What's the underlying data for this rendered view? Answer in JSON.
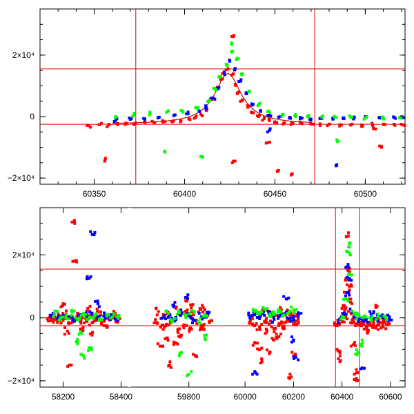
{
  "chart_data": [
    {
      "type": "scatter",
      "title": "",
      "xlabel": "",
      "ylabel": "",
      "xlim": [
        60320,
        60522
      ],
      "ylim": [
        -22000,
        35000
      ],
      "xticks": [
        60350,
        60400,
        60450,
        60500
      ],
      "xtick_labels": [
        "60350",
        "60400",
        "60450",
        "60500"
      ],
      "yticks": [
        20000,
        0,
        -20000
      ],
      "ytick_labels": [
        "2×10⁴",
        "0",
        "−2×10⁴"
      ],
      "hlines": [
        15500,
        -2500
      ],
      "vlines": [
        60373,
        60472
      ],
      "model": {
        "color": "#d00000",
        "peak_x": 60424,
        "peak_y": 14000,
        "base_y": -2500,
        "x_range": [
          60360,
          60470
        ]
      },
      "series": [
        {
          "color": "#ff0000",
          "x": [
            60347,
            60353,
            60358,
            60363,
            60368,
            60373,
            60378,
            60383,
            60388,
            60393,
            60398,
            60403,
            60406,
            60409,
            60412,
            60415,
            60418,
            60420,
            60422,
            60424,
            60426,
            60428,
            60430,
            60432,
            60435,
            60438,
            60441,
            60444,
            60447,
            60450,
            60455,
            60460,
            60465,
            60470,
            60475,
            60480,
            60486,
            60492,
            60498,
            60504,
            60510,
            60516,
            60521,
            60356,
            60427,
            60427,
            60446,
            60452,
            60459,
            60505,
            60509
          ],
          "y": [
            -3000,
            -2600,
            -2800,
            -2600,
            -2300,
            -2100,
            -2000,
            -1900,
            -1800,
            -1600,
            -1400,
            -1000,
            -300,
            700,
            2500,
            5500,
            9500,
            12000,
            14500,
            15500,
            13500,
            10500,
            8000,
            5500,
            3000,
            1200,
            0,
            -700,
            -1300,
            -1700,
            -2000,
            -2200,
            -2300,
            -2400,
            -2500,
            -2500,
            -2600,
            -2600,
            -2700,
            -2700,
            -2600,
            -2600,
            -2700,
            -14000,
            26000,
            -14500,
            -8500,
            -17500,
            -19000,
            -4000,
            -10000
          ]
        },
        {
          "color": "#0000ff",
          "x": [
            60362,
            60370,
            60378,
            60386,
            60394,
            60402,
            60408,
            60412,
            60416,
            60419,
            60422,
            60425,
            60428,
            60431,
            60434,
            60438,
            60442,
            60447,
            60452,
            60458,
            60464,
            60470,
            60476,
            60482,
            60488,
            60494,
            60500,
            60508,
            60516,
            60521,
            60447,
            60484
          ],
          "y": [
            -1200,
            -900,
            -700,
            -200,
            300,
            900,
            1800,
            3000,
            6000,
            9500,
            14000,
            18000,
            15500,
            11500,
            7500,
            4000,
            2000,
            500,
            -200,
            -500,
            -700,
            -800,
            -600,
            -500,
            -400,
            -300,
            -200,
            -300,
            -300,
            -400,
            -4500,
            -16000
          ]
        },
        {
          "color": "#00ff00",
          "x": [
            60362,
            60372,
            60381,
            60390,
            60399,
            60407,
            60413,
            60417,
            60420,
            60423,
            60426,
            60429,
            60432,
            60436,
            60441,
            60447,
            60454,
            60461,
            60468,
            60476,
            60484,
            60492,
            60500,
            60510,
            60519,
            60389,
            60409,
            60426,
            60485
          ],
          "y": [
            0,
            600,
            1000,
            1400,
            1800,
            2600,
            5000,
            9000,
            13000,
            17000,
            21000,
            19000,
            14000,
            8000,
            4000,
            1500,
            600,
            300,
            0,
            -200,
            -300,
            -300,
            -400,
            -400,
            -400,
            -11500,
            -13000,
            23500,
            -8000
          ]
        }
      ]
    },
    {
      "type": "scatter",
      "title": "",
      "xlabel": "",
      "ylabel": "",
      "segments": [
        {
          "xlim": [
            58120,
            58430
          ]
        },
        {
          "xlim": [
            59615,
            59900
          ]
        },
        {
          "xlim": [
            59900,
            60660
          ]
        }
      ],
      "ylim": [
        -22000,
        35000
      ],
      "xtick_labels": [
        "58200",
        "58400",
        "59800",
        "60000",
        "60200",
        "60400",
        "60600"
      ],
      "xticks": [
        58200,
        58400,
        59800,
        60000,
        60200,
        60400,
        60600
      ],
      "yticks": [
        20000,
        0,
        -20000
      ],
      "ytick_labels": [
        "2×10⁴",
        "0",
        "−2×10⁴"
      ],
      "hlines": [
        15500,
        -2500
      ],
      "vlines": [
        60373,
        60472
      ],
      "series": [
        {
          "color": "#ff0000",
          "x": [
            58150,
            58160,
            58170,
            58180,
            58190,
            58200,
            58210,
            58220,
            58230,
            58240,
            58250,
            58260,
            58270,
            58280,
            58290,
            58300,
            58310,
            58320,
            58330,
            58340,
            58350,
            58360,
            58370,
            58380,
            58390,
            58200,
            58215,
            58240,
            58260,
            58285,
            58300,
            58320,
            58350,
            58380,
            58240,
            58225,
            59700,
            59705,
            59712,
            59720,
            59728,
            59735,
            59745,
            59755,
            59765,
            59775,
            59785,
            59795,
            59805,
            59815,
            59825,
            59835,
            59845,
            59855,
            59865,
            59710,
            59730,
            59760,
            59790,
            59820,
            59850,
            59740,
            59775,
            59810,
            59840,
            60020,
            60030,
            60040,
            60050,
            60060,
            60070,
            60080,
            60090,
            60100,
            60110,
            60120,
            60130,
            60140,
            60150,
            60160,
            60170,
            60180,
            60190,
            60200,
            60210,
            60220,
            60040,
            60070,
            60100,
            60140,
            60180,
            60060,
            60090,
            60120,
            60160,
            60200,
            60370,
            60380,
            60390,
            60400,
            60410,
            60415,
            60420,
            60423,
            60426,
            60430,
            60435,
            60440,
            60445,
            60450,
            60460,
            60470,
            60480,
            60490,
            60500,
            60510,
            60520,
            60530,
            60540,
            60550,
            60560,
            60570,
            60580,
            60590,
            60380,
            60400,
            60427,
            60446,
            60459,
            60505,
            60540,
            60570,
            60385,
            60460
          ],
          "y": [
            -1000,
            -500,
            200,
            -1500,
            600,
            -800,
            1200,
            -1800,
            400,
            -600,
            1500,
            -1200,
            300,
            -900,
            700,
            -1600,
            200,
            -400,
            900,
            -1100,
            100,
            -700,
            500,
            -300,
            -900,
            4500,
            -4200,
            30000,
            -3500,
            3000,
            -5500,
            2000,
            -2500,
            1500,
            18000,
            -15000,
            -1500,
            2000,
            -3000,
            500,
            -2500,
            1800,
            -1000,
            3500,
            -4000,
            800,
            -2200,
            2500,
            -3200,
            1000,
            -1800,
            3000,
            -2800,
            400,
            -1500,
            -9000,
            -6500,
            -8000,
            5500,
            -12000,
            2500,
            -15000,
            -5500,
            4000,
            -3500,
            -1500,
            600,
            -2500,
            1500,
            -3000,
            2000,
            -1200,
            2800,
            -2000,
            1200,
            -3500,
            800,
            -1800,
            2500,
            -2600,
            1500,
            -800,
            1000,
            -2000,
            500,
            -1200,
            -8000,
            -14000,
            -11000,
            -6000,
            -19000,
            -10000,
            -4000,
            -7000,
            -3500,
            -12000,
            -2000,
            -2500,
            -1800,
            -1200,
            500,
            3000,
            8000,
            12000,
            15000,
            10000,
            5000,
            1500,
            -500,
            -1500,
            -2000,
            -2200,
            -2500,
            -1500,
            -3000,
            -1800,
            -2500,
            -1200,
            -3200,
            -2000,
            -1500,
            -2800,
            -1000,
            -2200,
            -10000,
            3000,
            26000,
            -8500,
            -17500,
            -4000,
            3500,
            -1500,
            -13000,
            -20000
          ]
        },
        {
          "color": "#0000ff",
          "x": [
            58160,
            58180,
            58200,
            58220,
            58240,
            58260,
            58280,
            58300,
            58320,
            58340,
            58360,
            58380,
            58300,
            58290,
            58320,
            59720,
            59740,
            59760,
            59780,
            59800,
            59820,
            59840,
            59860,
            59750,
            59790,
            60020,
            60040,
            60060,
            60080,
            60100,
            60120,
            60140,
            60160,
            60180,
            60200,
            60220,
            60200,
            60210,
            60040,
            60170,
            60390,
            60410,
            60420,
            60425,
            60430,
            60440,
            60460,
            60480,
            60500,
            60520,
            60540,
            60560,
            60580,
            60595,
            60484,
            60520
          ],
          "y": [
            300,
            -200,
            800,
            400,
            -500,
            1000,
            600,
            1500,
            -300,
            500,
            200,
            -400,
            26500,
            12500,
            4500,
            0,
            1000,
            -500,
            1500,
            600,
            -800,
            400,
            1200,
            4000,
            6500,
            500,
            1000,
            -300,
            800,
            1500,
            -500,
            700,
            1200,
            -200,
            400,
            800,
            -7000,
            -12500,
            -17000,
            6000,
            -500,
            1500,
            8000,
            17000,
            12000,
            2000,
            -400,
            -300,
            -500,
            200,
            -100,
            400,
            0,
            -300,
            -16000,
            1200
          ]
        },
        {
          "color": "#00ff00",
          "x": [
            58170,
            58190,
            58210,
            58230,
            58250,
            58270,
            58290,
            58310,
            58330,
            58350,
            58370,
            58390,
            58250,
            58270,
            58260,
            58290,
            59730,
            59750,
            59770,
            59790,
            59810,
            59830,
            59850,
            59770,
            59800,
            59850,
            60040,
            60060,
            60080,
            60100,
            60120,
            60140,
            60160,
            60180,
            60200,
            60400,
            60415,
            60425,
            60430,
            60450,
            60470,
            60490,
            60520,
            60550,
            60580,
            60485,
            60465,
            60430
          ],
          "y": [
            1200,
            -300,
            600,
            1800,
            -800,
            1400,
            200,
            900,
            -500,
            1100,
            300,
            -200,
            -7500,
            -12000,
            -4500,
            -9500,
            2200,
            -800,
            1800,
            500,
            2400,
            -1200,
            1000,
            -12000,
            -18000,
            -6500,
            2000,
            1200,
            2800,
            600,
            1800,
            2200,
            900,
            1500,
            2500,
            500,
            6000,
            21000,
            14000,
            1500,
            600,
            200,
            -100,
            400,
            100,
            -8000,
            -11000,
            23500
          ]
        }
      ]
    }
  ]
}
